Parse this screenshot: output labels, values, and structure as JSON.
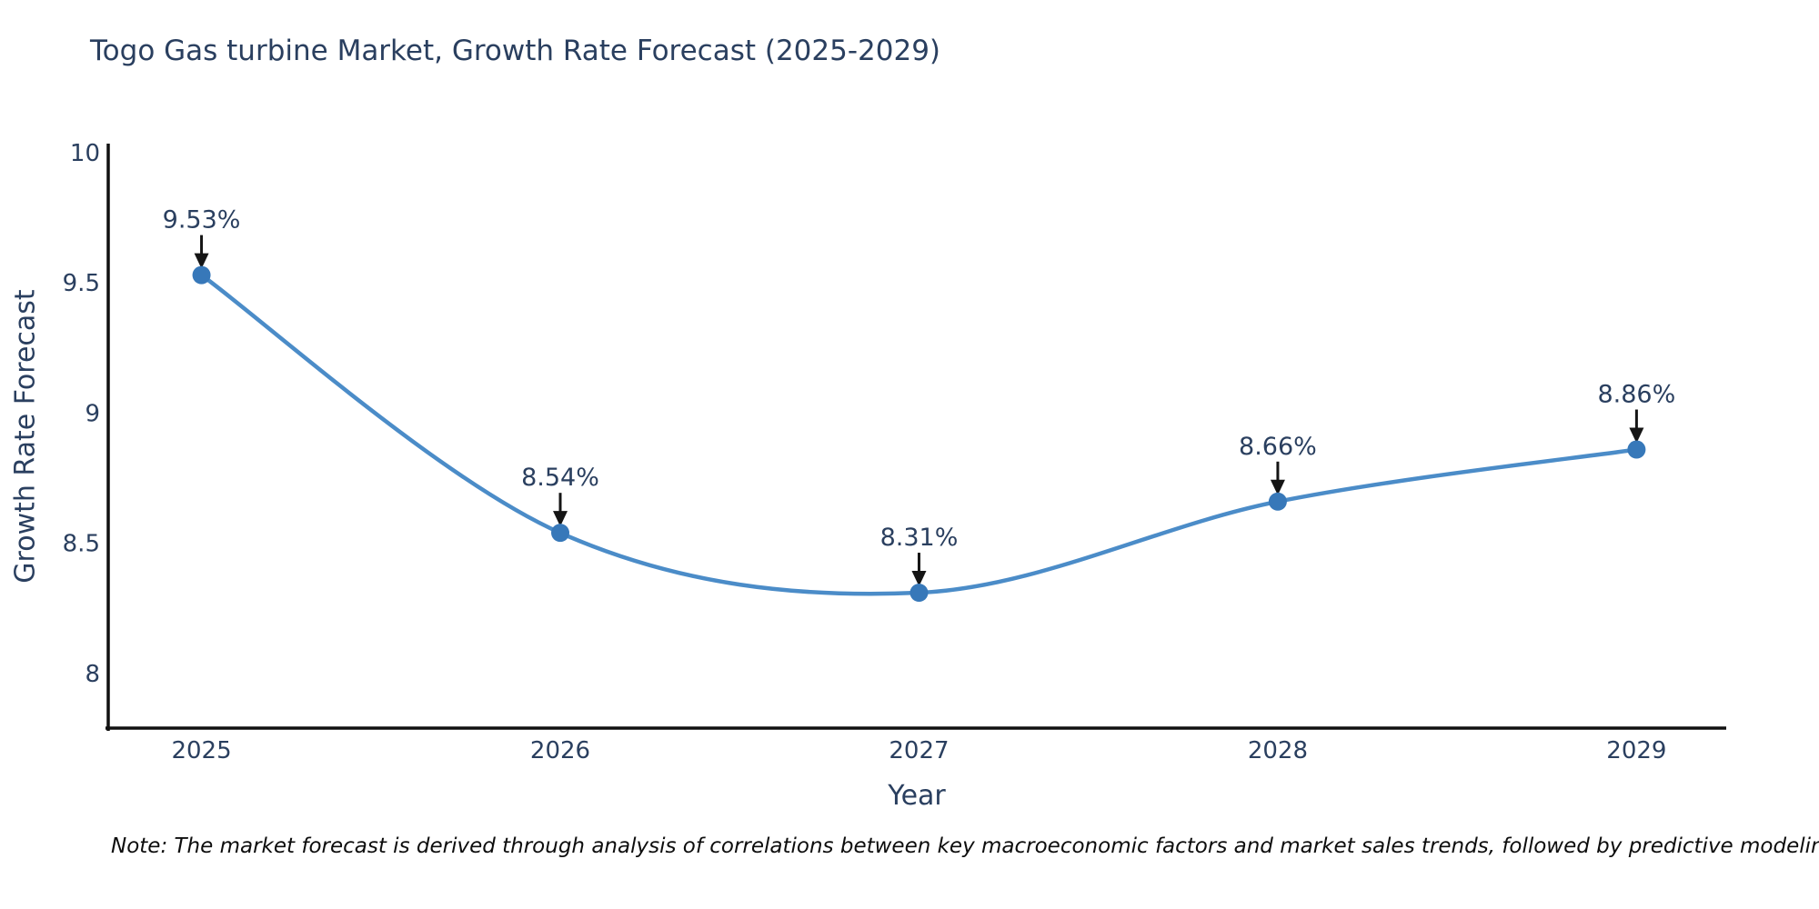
{
  "title": "Togo Gas turbine Market, Growth Rate Forecast (2025-2029)",
  "note": "Note: The market forecast is derived through analysis of correlations between key macroeconomic factors and market sales trends, followed by predictive modeling to project future sales",
  "chart_data": {
    "type": "line",
    "title": "Togo Gas turbine Market, Growth Rate Forecast (2025-2029)",
    "xlabel": "Year",
    "ylabel": "Growth Rate Forecast",
    "x": [
      2025,
      2026,
      2027,
      2028,
      2029
    ],
    "values": [
      9.53,
      8.54,
      8.31,
      8.66,
      8.86
    ],
    "point_labels": [
      "9.53%",
      "8.54%",
      "8.31%",
      "8.66%",
      "8.86%"
    ],
    "xticks": [
      {
        "value": 2025,
        "label": "2025"
      },
      {
        "value": 2026,
        "label": "2026"
      },
      {
        "value": 2027,
        "label": "2027"
      },
      {
        "value": 2028,
        "label": "2028"
      },
      {
        "value": 2029,
        "label": "2029"
      }
    ],
    "yticks": [
      {
        "value": 8,
        "label": "8"
      },
      {
        "value": 8.5,
        "label": "8.5"
      },
      {
        "value": 9,
        "label": "9"
      },
      {
        "value": 9.5,
        "label": "9.5"
      },
      {
        "value": 10,
        "label": "10"
      }
    ],
    "xlim": [
      2024.74,
      2029.25
    ],
    "ylim": [
      7.79,
      10
    ],
    "grid": false,
    "legend": "none",
    "line_shape": "spline",
    "colors": {
      "line": "#4b8cc8",
      "marker": "#3778b9",
      "axis_line": "#111111",
      "tick_text": "#2a3f5f",
      "annotation_text": "#2a3f5f",
      "arrow": "#151515",
      "background": "#ffffff"
    }
  }
}
